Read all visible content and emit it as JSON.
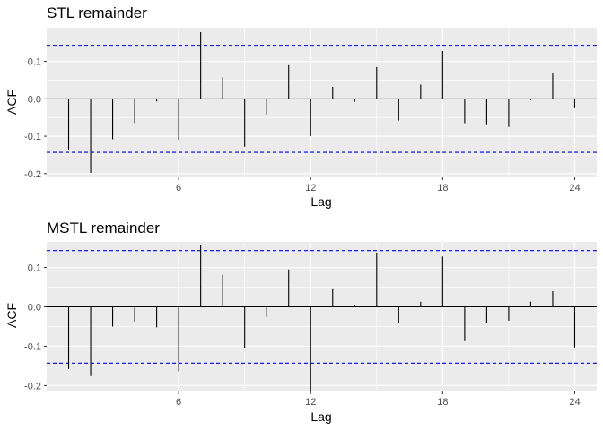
{
  "chart_data": [
    {
      "type": "bar",
      "title": "STL remainder",
      "xlabel": "Lag",
      "ylabel": "ACF",
      "xlim": [
        0,
        25
      ],
      "ylim": [
        -0.21,
        0.19
      ],
      "x_ticks": [
        6,
        12,
        18,
        24
      ],
      "y_ticks": [
        -0.2,
        -0.1,
        0.0,
        0.1
      ],
      "y_tick_labels": [
        "-0.2",
        "-0.1",
        "0.0",
        "0.1"
      ],
      "confidence_bound": 0.143,
      "grid": true,
      "lags": [
        1,
        2,
        3,
        4,
        5,
        6,
        7,
        8,
        9,
        10,
        11,
        12,
        13,
        14,
        15,
        16,
        17,
        18,
        19,
        20,
        21,
        22,
        23,
        24
      ],
      "values": [
        -0.138,
        -0.198,
        -0.108,
        -0.065,
        -0.007,
        -0.11,
        0.178,
        0.057,
        -0.128,
        -0.042,
        0.09,
        -0.1,
        0.032,
        -0.008,
        0.085,
        -0.058,
        0.038,
        0.128,
        -0.065,
        -0.068,
        -0.075,
        -0.003,
        0.07,
        -0.025
      ]
    },
    {
      "type": "bar",
      "title": "MSTL remainder",
      "xlabel": "Lag",
      "ylabel": "ACF",
      "xlim": [
        0,
        25
      ],
      "ylim": [
        -0.215,
        0.165
      ],
      "x_ticks": [
        6,
        12,
        18,
        24
      ],
      "y_ticks": [
        -0.2,
        -0.1,
        0.0,
        0.1
      ],
      "y_tick_labels": [
        "-0.2",
        "-0.1",
        "0.0",
        "0.1"
      ],
      "confidence_bound": 0.143,
      "grid": true,
      "lags": [
        1,
        2,
        3,
        4,
        5,
        6,
        7,
        8,
        9,
        10,
        11,
        12,
        13,
        14,
        15,
        16,
        17,
        18,
        19,
        20,
        21,
        22,
        23,
        24
      ],
      "values": [
        -0.158,
        -0.176,
        -0.05,
        -0.037,
        -0.052,
        -0.164,
        0.158,
        0.082,
        -0.105,
        -0.025,
        0.095,
        -0.213,
        0.045,
        0.003,
        0.138,
        -0.04,
        0.013,
        0.128,
        -0.087,
        -0.042,
        -0.035,
        0.013,
        0.04,
        -0.103
      ]
    }
  ],
  "colors": {
    "panel_background": "#ebebeb",
    "grid": "#ffffff",
    "bars": "#000000",
    "confidence_lines": "#0000ff"
  }
}
